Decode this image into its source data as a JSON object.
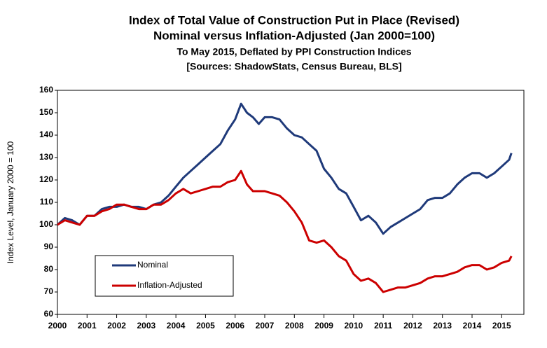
{
  "chart_data": {
    "type": "line",
    "title": [
      "Index of Total Value of Construction Put in Place (Revised)",
      "Nominal versus Inflation-Adjusted (Jan 2000=100)"
    ],
    "subtitle": [
      "To May 2015, Deflated by PPI Construction Indices",
      "[Sources: ShadowStats, Census Bureau, BLS]"
    ],
    "y_label": "Index Level, January 2000 = 100",
    "x": [
      2000,
      2000.25,
      2000.5,
      2000.75,
      2001,
      2001.25,
      2001.5,
      2001.75,
      2002,
      2002.25,
      2002.5,
      2002.75,
      2003,
      2003.25,
      2003.5,
      2003.75,
      2004,
      2004.25,
      2004.5,
      2004.75,
      2005,
      2005.25,
      2005.5,
      2005.75,
      2006,
      2006.2,
      2006.4,
      2006.6,
      2006.8,
      2007,
      2007.25,
      2007.5,
      2007.75,
      2008,
      2008.25,
      2008.5,
      2008.75,
      2009,
      2009.25,
      2009.5,
      2009.75,
      2010,
      2010.25,
      2010.5,
      2010.75,
      2011,
      2011.25,
      2011.5,
      2011.75,
      2012,
      2012.25,
      2012.5,
      2012.75,
      2013,
      2013.25,
      2013.5,
      2013.75,
      2014,
      2014.25,
      2014.5,
      2014.75,
      2015,
      2015.25,
      2015.33
    ],
    "series": [
      {
        "name": "Nominal",
        "color": "#1f3a7a",
        "values": [
          100,
          103,
          102,
          100,
          104,
          104,
          107,
          108,
          108,
          109,
          108,
          108,
          107,
          109,
          110,
          113,
          117,
          121,
          124,
          127,
          130,
          133,
          136,
          142,
          147,
          154,
          150,
          148,
          145,
          148,
          148,
          147,
          143,
          140,
          139,
          136,
          133,
          125,
          121,
          116,
          114,
          108,
          102,
          104,
          101,
          96,
          99,
          101,
          103,
          105,
          107,
          111,
          112,
          112,
          114,
          118,
          121,
          123,
          123,
          121,
          123,
          126,
          129,
          132
        ]
      },
      {
        "name": "Inflation-Adjusted",
        "color": "#cc0000",
        "values": [
          100,
          102,
          101,
          100,
          104,
          104,
          106,
          107,
          109,
          109,
          108,
          107,
          107,
          109,
          109,
          111,
          114,
          116,
          114,
          115,
          116,
          117,
          117,
          119,
          120,
          124,
          118,
          115,
          115,
          115,
          114,
          113,
          110,
          106,
          101,
          93,
          92,
          93,
          90,
          86,
          84,
          78,
          75,
          76,
          74,
          70,
          71,
          72,
          72,
          73,
          74,
          76,
          77,
          77,
          78,
          79,
          81,
          82,
          82,
          80,
          81,
          83,
          84,
          86
        ]
      }
    ],
    "xlim": [
      2000,
      2015.75
    ],
    "xticks": [
      2000,
      2001,
      2002,
      2003,
      2004,
      2005,
      2006,
      2007,
      2008,
      2009,
      2010,
      2011,
      2012,
      2013,
      2014,
      2015
    ],
    "ylim": [
      60,
      160
    ],
    "yticks": [
      60,
      70,
      80,
      90,
      100,
      110,
      120,
      130,
      140,
      150,
      160
    ],
    "grid": false,
    "legend_position": "lower-left"
  }
}
